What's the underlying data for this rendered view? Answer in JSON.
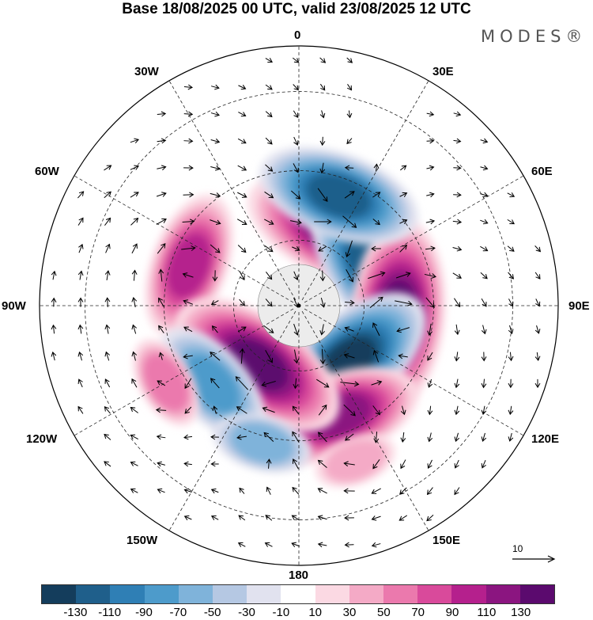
{
  "title": "Base 18/08/2025 00 UTC, valid 23/08/2025 12 UTC",
  "logo": "MODES®",
  "longitude_labels": {
    "top": "0",
    "top_right": "30E",
    "right_upper": "60E",
    "right": "90E",
    "right_lower": "120E",
    "bottom_right": "150E",
    "bottom": "180",
    "bottom_left": "150W",
    "left_lower": "120W",
    "left": "90W",
    "left_upper": "60W",
    "top_left": "30W"
  },
  "reference_vector": {
    "value": "10"
  },
  "colorbar": {
    "colors": [
      "#143d5c",
      "#1f5f8b",
      "#2f7fb5",
      "#4d9bcb",
      "#7fb3da",
      "#b5c8e3",
      "#e1e2ef",
      "#ffffff",
      "#fbd9e3",
      "#f4aac6",
      "#eb79ad",
      "#d94a9b",
      "#b5208d",
      "#8b1580",
      "#5b0a6e"
    ],
    "tick_labels": [
      "-130",
      "-110",
      "-90",
      "-70",
      "-50",
      "-30",
      "-10",
      "10",
      "30",
      "50",
      "70",
      "90",
      "110",
      "130"
    ]
  },
  "anomaly_centers": [
    {
      "sign": "positive",
      "lon": 25,
      "lat": 65,
      "value": 115
    },
    {
      "sign": "negative",
      "lon": 60,
      "lat": 65,
      "value": -110
    },
    {
      "sign": "positive",
      "lon": 95,
      "lat": 60,
      "value": 125
    },
    {
      "sign": "negative",
      "lon": 140,
      "lat": 67,
      "value": -120
    },
    {
      "sign": "positive",
      "lon": 160,
      "lat": 55,
      "value": 100
    },
    {
      "sign": "negative",
      "lon": 20,
      "lat": 55,
      "value": -100
    },
    {
      "sign": "positive",
      "lon": 290,
      "lat": 55,
      "value": 85
    },
    {
      "sign": "positive",
      "lon": 215,
      "lat": 68,
      "value": 120
    },
    {
      "sign": "negative",
      "lon": 228,
      "lat": 55,
      "value": -75
    },
    {
      "sign": "positive",
      "lon": 240,
      "lat": 45,
      "value": 40
    },
    {
      "sign": "negative",
      "lon": 195,
      "lat": 48,
      "value": -45
    },
    {
      "sign": "positive",
      "lon": 160,
      "lat": 42,
      "value": 30
    }
  ]
}
